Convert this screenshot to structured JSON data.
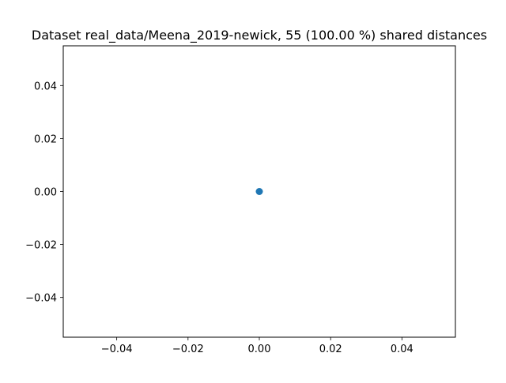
{
  "chart_data": {
    "type": "scatter",
    "title": "Dataset real_data/Meena_2019-newick, 55 (100.00 %) shared distances",
    "xlabel": "",
    "ylabel": "",
    "xlim": [
      -0.055,
      0.055
    ],
    "ylim": [
      -0.055,
      0.055
    ],
    "x_ticks": [
      -0.04,
      -0.02,
      0.0,
      0.02,
      0.04
    ],
    "y_ticks": [
      -0.04,
      -0.02,
      0.0,
      0.02,
      0.04
    ],
    "x_tick_labels": [
      "−0.04",
      "−0.02",
      "0.00",
      "0.02",
      "0.04"
    ],
    "y_tick_labels": [
      "−0.04",
      "−0.02",
      "0.00",
      "0.02",
      "0.04"
    ],
    "grid": false,
    "series": [
      {
        "x": [
          0.0
        ],
        "y": [
          0.0
        ],
        "color": "#1f77b4"
      }
    ]
  }
}
